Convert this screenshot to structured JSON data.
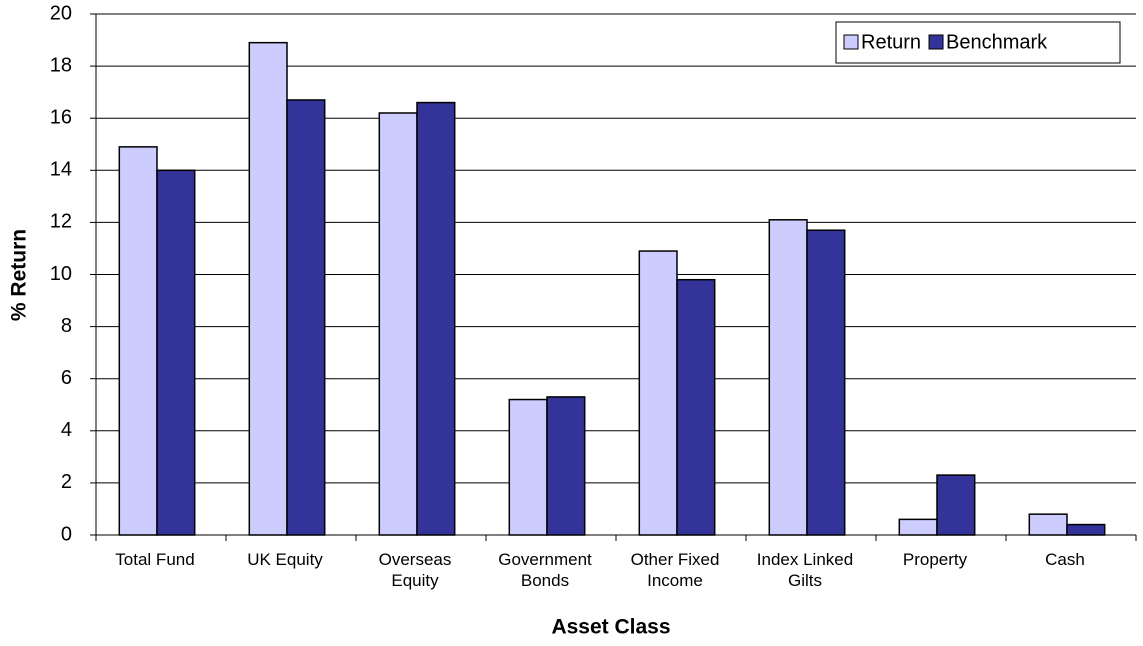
{
  "chart_data": {
    "type": "bar",
    "categories": [
      "Total Fund",
      "UK Equity",
      "Overseas\nEquity",
      "Government\nBonds",
      "Other Fixed\nIncome",
      "Index Linked\nGilts",
      "Property",
      "Cash"
    ],
    "series": [
      {
        "name": "Return",
        "color": "#ccccff",
        "values": [
          14.9,
          18.9,
          16.2,
          5.2,
          10.9,
          12.1,
          0.6,
          0.8
        ]
      },
      {
        "name": "Benchmark",
        "color": "#333399",
        "values": [
          14.0,
          16.7,
          16.6,
          5.3,
          9.8,
          11.7,
          2.3,
          0.4
        ]
      }
    ],
    "x_label": "Asset Class",
    "y_label": "% Return",
    "ylim": [
      0,
      20
    ],
    "yticks": [
      0,
      2,
      4,
      6,
      8,
      10,
      12,
      14,
      16,
      18,
      20
    ],
    "grid": true,
    "legend": "top-right"
  }
}
